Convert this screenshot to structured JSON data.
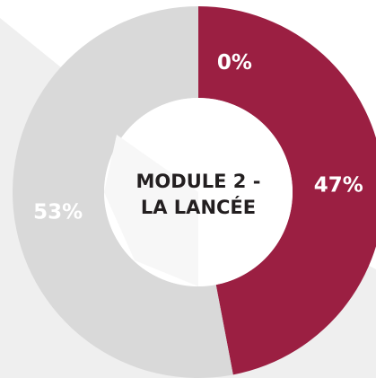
{
  "chart_data": {
    "type": "donut",
    "values": [
      0,
      47,
      53
    ],
    "value_labels": [
      "0%",
      "47%",
      "53%"
    ],
    "colors": [
      "#9b1f42",
      "#9b1f42",
      "#d9d9d9"
    ],
    "center_label": [
      "MODULE 2 -",
      "LA LANCÉE"
    ]
  }
}
